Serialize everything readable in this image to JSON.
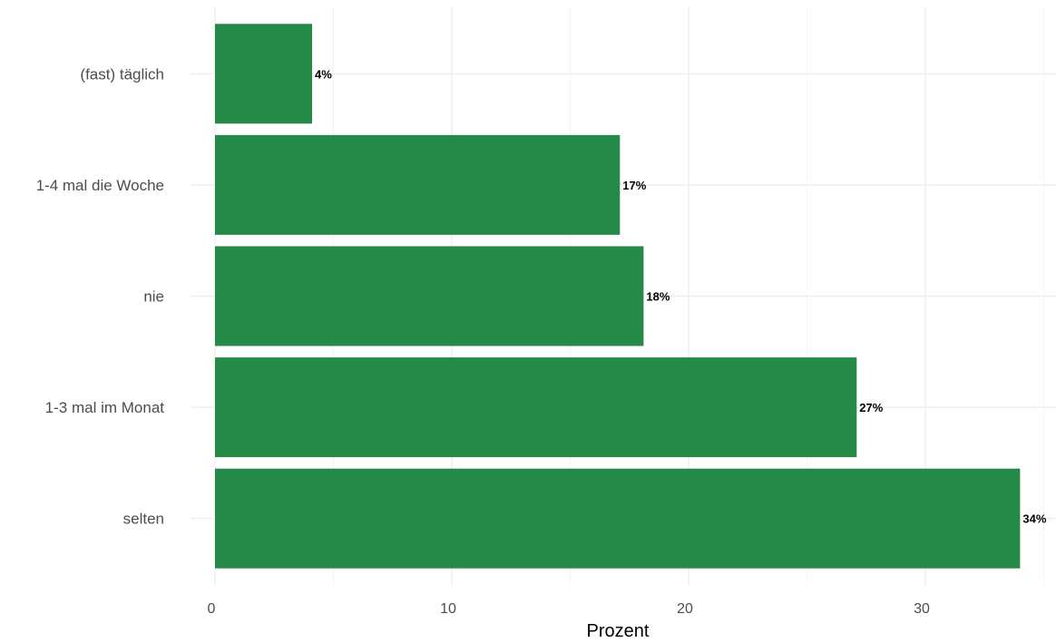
{
  "chart_data": {
    "type": "bar",
    "orientation": "horizontal",
    "title": "",
    "xlabel": "Prozent",
    "ylabel": "",
    "xlim": [
      0,
      35
    ],
    "x_ticks": [
      0,
      10,
      20,
      30
    ],
    "x_tick_labels": [
      "0",
      "10",
      "20",
      "30"
    ],
    "grid": true,
    "legend": "none",
    "bar_color": "#258a47",
    "categories": [
      "(fast) täglich",
      "1-4 mal die Woche",
      "nie",
      "1-3 mal im Monat",
      "selten"
    ],
    "values": [
      4.1,
      17.1,
      18.1,
      27.1,
      34.0
    ],
    "data_labels": [
      "4%",
      "17%",
      "18%",
      "27%",
      "34%"
    ]
  }
}
